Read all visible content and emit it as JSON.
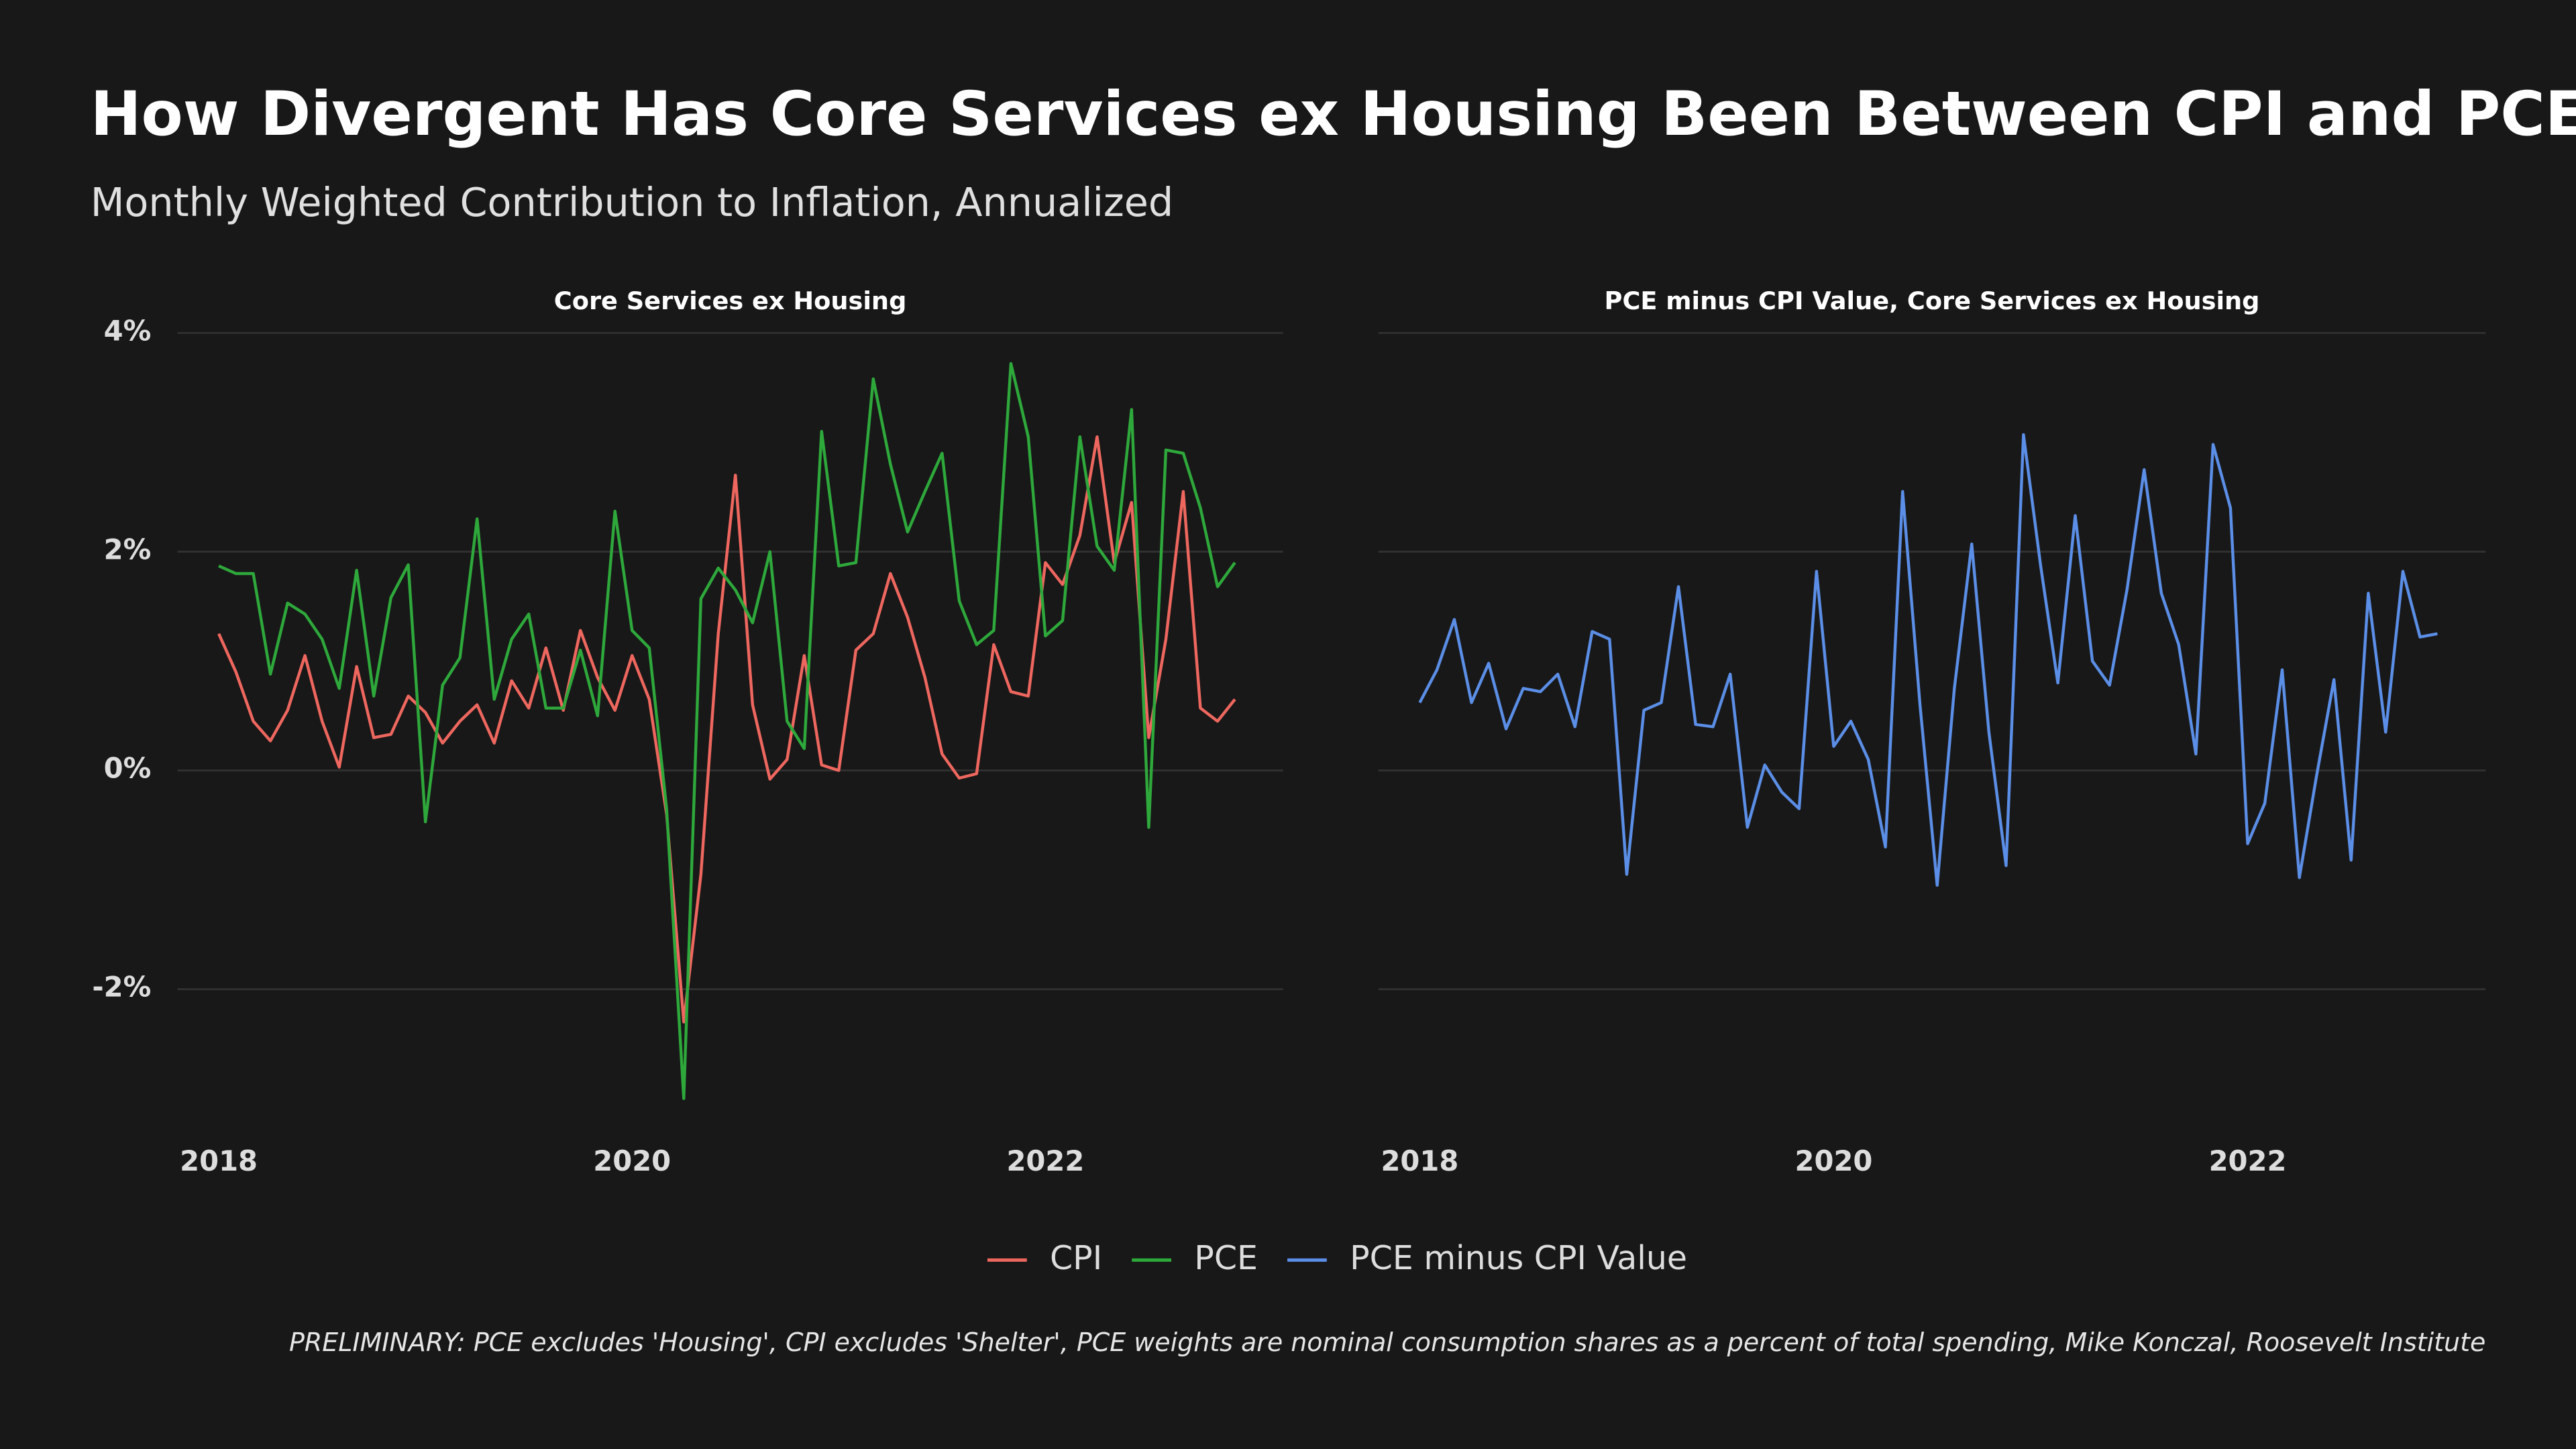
{
  "title": "How Divergent Has Core Services ex Housing Been Between CPI and PCE?",
  "subtitle": "Monthly Weighted Contribution to Inflation, Annualized",
  "caption": "PRELIMINARY: PCE excludes 'Housing', CPI excludes 'Shelter', PCE weights are nominal consumption shares as a percent of total spending, Mike Konczal, Roosevelt Institute",
  "chart_data": [
    {
      "type": "line",
      "title": "Core Services ex Housing",
      "x": [
        2018,
        2018.083,
        2018.167,
        2018.25,
        2018.333,
        2018.417,
        2018.5,
        2018.583,
        2018.667,
        2018.75,
        2018.833,
        2018.917,
        2019,
        2019.083,
        2019.167,
        2019.25,
        2019.333,
        2019.417,
        2019.5,
        2019.583,
        2019.667,
        2019.75,
        2019.833,
        2019.917,
        2020,
        2020.083,
        2020.167,
        2020.25,
        2020.333,
        2020.417,
        2020.5,
        2020.583,
        2020.667,
        2020.75,
        2020.833,
        2020.917,
        2021,
        2021.083,
        2021.167,
        2021.25,
        2021.333,
        2021.417,
        2021.5,
        2021.583,
        2021.667,
        2021.75,
        2021.833,
        2021.917,
        2022,
        2022.083,
        2022.167,
        2022.25,
        2022.333,
        2022.417,
        2022.5,
        2022.583,
        2022.667,
        2022.75,
        2022.833,
        2022.917
      ],
      "series": [
        {
          "name": "CPI",
          "color": "#ee675f",
          "values": [
            1.25,
            0.9,
            0.45,
            0.27,
            0.55,
            1.05,
            0.45,
            0.03,
            0.95,
            0.3,
            0.33,
            0.68,
            0.53,
            0.25,
            0.45,
            0.6,
            0.25,
            0.82,
            0.57,
            1.12,
            0.55,
            1.28,
            0.85,
            0.55,
            1.05,
            0.65,
            -0.4,
            -2.3,
            -0.95,
            1.25,
            2.7,
            0.6,
            -0.08,
            0.1,
            1.05,
            0.05,
            0.0,
            1.1,
            1.25,
            1.8,
            1.4,
            0.85,
            0.15,
            -0.07,
            -0.03,
            1.15,
            0.72,
            0.68,
            1.9,
            1.7,
            2.15,
            3.05,
            1.9,
            2.45,
            0.3,
            1.2,
            2.55,
            0.57,
            0.45,
            0.65
          ]
        },
        {
          "name": "PCE",
          "color": "#2ea83b",
          "values": [
            1.87,
            1.8,
            1.8,
            0.88,
            1.53,
            1.43,
            1.2,
            0.75,
            1.83,
            0.68,
            1.58,
            1.88,
            -0.47,
            0.78,
            1.03,
            2.3,
            0.65,
            1.2,
            1.43,
            0.57,
            0.57,
            1.1,
            0.5,
            2.37,
            1.28,
            1.12,
            -0.35,
            -3.0,
            1.57,
            1.85,
            1.65,
            1.35,
            2.0,
            0.45,
            0.2,
            3.1,
            1.87,
            1.9,
            3.58,
            2.8,
            2.18,
            2.55,
            2.9,
            1.55,
            1.15,
            1.28,
            3.72,
            3.05,
            1.23,
            1.37,
            3.05,
            2.05,
            1.83,
            3.3,
            -0.52,
            2.93,
            2.9,
            2.4,
            1.68,
            1.9
          ]
        }
      ],
      "xlim": [
        2017.8,
        2023.15
      ],
      "xticks": [
        2018,
        2020,
        2022
      ],
      "ylim": [
        -3.2,
        4.1
      ],
      "yticks": [
        {
          "value": -2,
          "label": "-2%"
        },
        {
          "value": 0,
          "label": "0%"
        },
        {
          "value": 2,
          "label": "2%"
        },
        {
          "value": 4,
          "label": "4%"
        }
      ],
      "grid": true
    },
    {
      "type": "line",
      "title": "PCE minus CPI Value, Core Services ex Housing",
      "x": [
        2018,
        2018.083,
        2018.167,
        2018.25,
        2018.333,
        2018.417,
        2018.5,
        2018.583,
        2018.667,
        2018.75,
        2018.833,
        2018.917,
        2019,
        2019.083,
        2019.167,
        2019.25,
        2019.333,
        2019.417,
        2019.5,
        2019.583,
        2019.667,
        2019.75,
        2019.833,
        2019.917,
        2020,
        2020.083,
        2020.167,
        2020.25,
        2020.333,
        2020.417,
        2020.5,
        2020.583,
        2020.667,
        2020.75,
        2020.833,
        2020.917,
        2021,
        2021.083,
        2021.167,
        2021.25,
        2021.333,
        2021.417,
        2021.5,
        2021.583,
        2021.667,
        2021.75,
        2021.833,
        2021.917,
        2022,
        2022.083,
        2022.167,
        2022.25,
        2022.333,
        2022.417,
        2022.5,
        2022.583,
        2022.667,
        2022.75,
        2022.833,
        2022.917
      ],
      "series": [
        {
          "name": "PCE minus CPI Value",
          "color": "#5b8ee6",
          "values": [
            0.62,
            0.92,
            1.38,
            0.62,
            0.98,
            0.38,
            0.75,
            0.72,
            0.88,
            0.4,
            1.27,
            1.2,
            -0.95,
            0.55,
            0.62,
            1.68,
            0.42,
            0.4,
            0.88,
            -0.52,
            0.05,
            -0.2,
            -0.35,
            1.82,
            0.22,
            0.45,
            0.1,
            -0.7,
            2.55,
            0.6,
            -1.05,
            0.75,
            2.07,
            0.35,
            -0.87,
            3.07,
            1.87,
            0.8,
            2.33,
            1.0,
            0.78,
            1.65,
            2.75,
            1.62,
            1.15,
            0.15,
            2.98,
            2.4,
            -0.67,
            -0.3,
            0.92,
            -0.98,
            -0.05,
            0.83,
            -0.82,
            1.62,
            0.35,
            1.82,
            1.22,
            1.25
          ]
        }
      ],
      "xlim": [
        2017.8,
        2023.15
      ],
      "xticks": [
        2018,
        2020,
        2022
      ],
      "ylim": [
        -3.2,
        4.1
      ],
      "yticks": [
        -2,
        0,
        2,
        4
      ],
      "grid": true
    }
  ]
}
